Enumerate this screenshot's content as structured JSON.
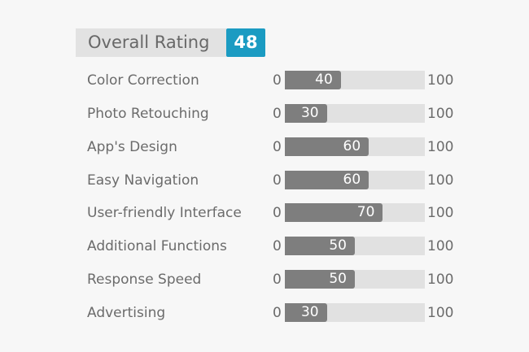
{
  "header": {
    "title": "Overall Rating",
    "score": "48"
  },
  "scale": {
    "min": "0",
    "max": "100"
  },
  "ratings": [
    {
      "label": "Color Correction",
      "value": 40,
      "display": "40"
    },
    {
      "label": "Photo Retouching",
      "value": 30,
      "display": "30"
    },
    {
      "label": "App's Design",
      "value": 60,
      "display": "60"
    },
    {
      "label": "Easy Navigation",
      "value": 60,
      "display": "60"
    },
    {
      "label": "User-friendly Interface",
      "value": 70,
      "display": "70"
    },
    {
      "label": "Additional Functions",
      "value": 50,
      "display": "50"
    },
    {
      "label": "Response Speed",
      "value": 50,
      "display": "50"
    },
    {
      "label": "Advertising",
      "value": 30,
      "display": "30"
    }
  ],
  "colors": {
    "score_badge": "#1b9bc2",
    "bar_fill": "#7e7e7e",
    "bar_track": "#e1e1e1",
    "header_background": "#e2e2e2"
  }
}
